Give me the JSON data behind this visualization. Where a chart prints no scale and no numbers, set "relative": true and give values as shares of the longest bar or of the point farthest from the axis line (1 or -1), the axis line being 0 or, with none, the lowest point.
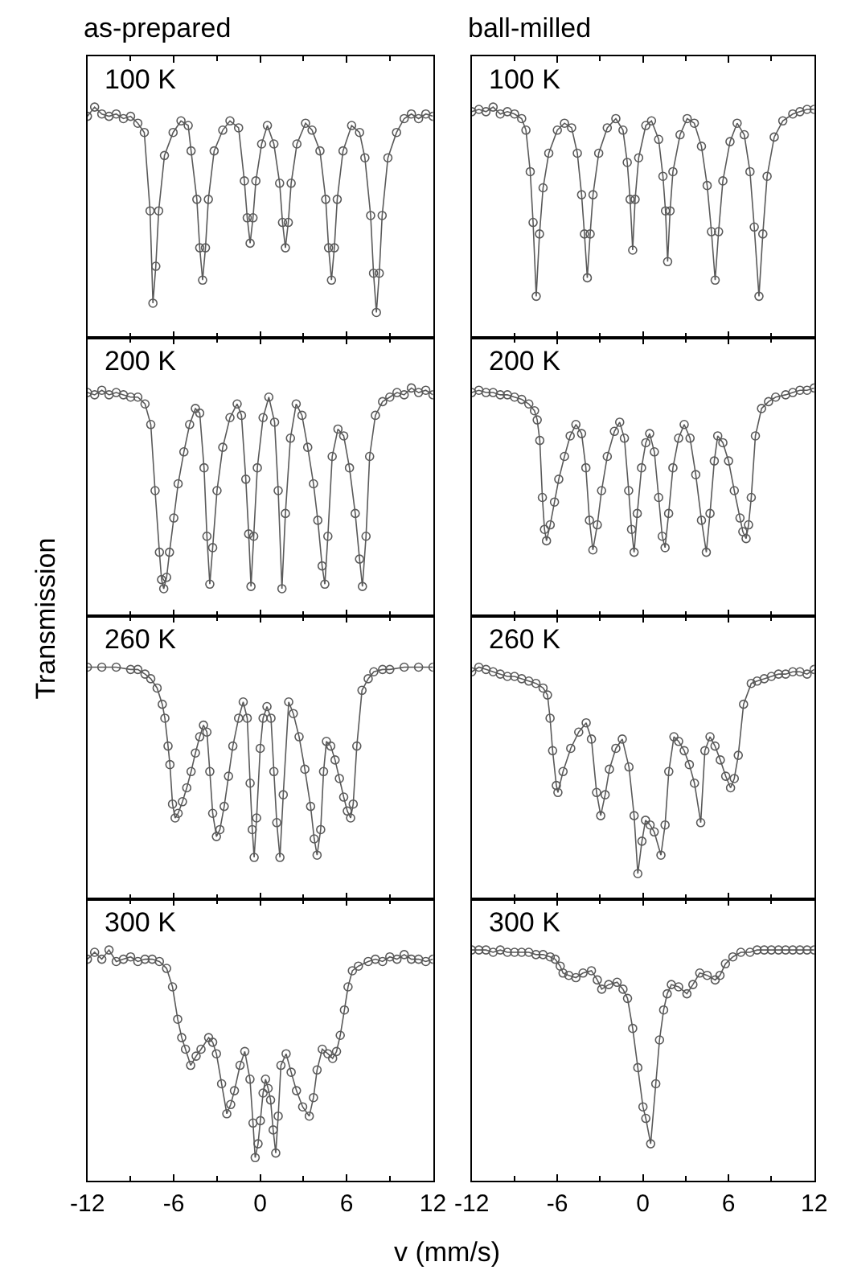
{
  "chart_data": [
    {
      "type": "line",
      "marker": "circle",
      "relative": true,
      "title": "as-prepared",
      "annotations": [
        "100 K"
      ],
      "xlim": [
        -12,
        12
      ],
      "xticks": [
        -12,
        -6,
        0,
        6,
        12
      ],
      "tick_labels": false,
      "x": [
        -12,
        -11.5,
        -11,
        -10.5,
        -10,
        -9.5,
        -9,
        -8.5,
        -8.05,
        -7.65,
        -7.45,
        -7.25,
        -7.05,
        -6.65,
        -6.05,
        -5.5,
        -5.0,
        -4.8,
        -4.4,
        -4.2,
        -4.0,
        -3.8,
        -3.6,
        -3.2,
        -2.6,
        -2.1,
        -1.5,
        -1.1,
        -0.9,
        -0.7,
        -0.5,
        -0.3,
        0.1,
        0.5,
        0.95,
        1.35,
        1.55,
        1.75,
        1.95,
        2.15,
        2.55,
        3.15,
        3.6,
        4.15,
        4.55,
        4.75,
        4.95,
        5.15,
        5.35,
        5.75,
        6.35,
        6.9,
        7.27,
        7.67,
        7.87,
        8.07,
        8.27,
        8.47,
        8.87,
        9.47,
        10,
        10.5,
        11,
        11.5,
        12
      ],
      "series": [
        {
          "color": "#5a5a5a",
          "values": [
            0.96,
            1.0,
            0.97,
            0.96,
            0.97,
            0.95,
            0.96,
            0.93,
            0.89,
            0.55,
            0.15,
            0.31,
            0.55,
            0.79,
            0.89,
            0.94,
            0.92,
            0.81,
            0.6,
            0.39,
            0.25,
            0.39,
            0.6,
            0.81,
            0.9,
            0.94,
            0.91,
            0.68,
            0.52,
            0.41,
            0.52,
            0.68,
            0.84,
            0.92,
            0.84,
            0.67,
            0.5,
            0.39,
            0.5,
            0.67,
            0.84,
            0.93,
            0.9,
            0.81,
            0.6,
            0.39,
            0.25,
            0.39,
            0.6,
            0.81,
            0.92,
            0.89,
            0.78,
            0.53,
            0.28,
            0.11,
            0.28,
            0.53,
            0.78,
            0.89,
            0.95,
            0.97,
            0.95,
            0.97,
            0.96
          ]
        }
      ]
    },
    {
      "type": "line",
      "marker": "circle",
      "relative": true,
      "title": "ball-milled",
      "annotations": [
        "100 K"
      ],
      "xlim": [
        -12,
        12
      ],
      "xticks": [
        -12,
        -6,
        0,
        6,
        12
      ],
      "tick_labels": false,
      "x": [
        -12,
        -11.5,
        -11,
        -10.5,
        -10,
        -9.5,
        -9,
        -8.5,
        -8.2,
        -7.9,
        -7.7,
        -7.48,
        -7.25,
        -7.0,
        -6.6,
        -6.0,
        -5.5,
        -5.0,
        -4.6,
        -4.3,
        -4.1,
        -3.9,
        -3.7,
        -3.5,
        -3.1,
        -2.5,
        -1.9,
        -1.4,
        -1.1,
        -0.9,
        -0.72,
        -0.55,
        -0.3,
        0.2,
        0.6,
        1.1,
        1.4,
        1.58,
        1.73,
        1.9,
        2.1,
        2.6,
        3.1,
        3.6,
        4.1,
        4.5,
        4.8,
        5.06,
        5.3,
        5.6,
        6.1,
        6.6,
        7.1,
        7.5,
        7.8,
        8.13,
        8.4,
        8.7,
        9.2,
        9.8,
        10.5,
        11,
        11.5,
        12
      ],
      "series": [
        {
          "color": "#5a5a5a",
          "values": [
            0.98,
            0.99,
            0.98,
            1.0,
            0.97,
            0.98,
            0.97,
            0.95,
            0.9,
            0.72,
            0.5,
            0.18,
            0.45,
            0.65,
            0.8,
            0.9,
            0.93,
            0.91,
            0.8,
            0.62,
            0.45,
            0.26,
            0.45,
            0.62,
            0.8,
            0.91,
            0.95,
            0.9,
            0.76,
            0.6,
            0.38,
            0.6,
            0.78,
            0.92,
            0.94,
            0.86,
            0.7,
            0.55,
            0.33,
            0.55,
            0.72,
            0.88,
            0.95,
            0.93,
            0.83,
            0.66,
            0.46,
            0.25,
            0.46,
            0.68,
            0.85,
            0.93,
            0.88,
            0.72,
            0.48,
            0.18,
            0.45,
            0.7,
            0.87,
            0.94,
            0.97,
            0.98,
            0.99,
            0.99
          ]
        }
      ]
    },
    {
      "type": "line",
      "marker": "circle",
      "relative": true,
      "ylabel": "Transmission",
      "annotations": [
        "200 K"
      ],
      "xlim": [
        -12,
        12
      ],
      "xticks": [
        -12,
        -6,
        0,
        6,
        12
      ],
      "tick_labels": false,
      "x": [
        -12,
        -11.5,
        -11,
        -10.5,
        -10,
        -9.5,
        -9,
        -8.5,
        -8,
        -7.6,
        -7.3,
        -7.0,
        -6.85,
        -6.7,
        -6.5,
        -6.3,
        -6.0,
        -5.7,
        -5.3,
        -4.9,
        -4.5,
        -4.2,
        -3.9,
        -3.7,
        -3.5,
        -3.3,
        -3.0,
        -2.6,
        -2.1,
        -1.6,
        -1.3,
        -1.0,
        -0.8,
        -0.64,
        -0.45,
        -0.2,
        0.2,
        0.6,
        1.0,
        1.25,
        1.51,
        1.75,
        2.1,
        2.5,
        2.9,
        3.3,
        3.7,
        4.0,
        4.3,
        4.49,
        4.7,
        5.0,
        5.4,
        5.8,
        6.2,
        6.6,
        6.9,
        7.1,
        7.35,
        7.6,
        8.0,
        8.5,
        9,
        9.5,
        10,
        10.5,
        11,
        11.5,
        12
      ],
      "series": [
        {
          "color": "#5a5a5a",
          "values": [
            0.98,
            0.97,
            0.99,
            0.97,
            0.98,
            0.97,
            0.96,
            0.96,
            0.93,
            0.84,
            0.55,
            0.28,
            0.16,
            0.12,
            0.17,
            0.28,
            0.43,
            0.58,
            0.72,
            0.84,
            0.91,
            0.89,
            0.65,
            0.35,
            0.14,
            0.3,
            0.55,
            0.74,
            0.87,
            0.93,
            0.88,
            0.6,
            0.36,
            0.13,
            0.35,
            0.65,
            0.87,
            0.96,
            0.85,
            0.55,
            0.12,
            0.45,
            0.78,
            0.93,
            0.88,
            0.74,
            0.58,
            0.42,
            0.22,
            0.14,
            0.35,
            0.7,
            0.82,
            0.79,
            0.65,
            0.45,
            0.25,
            0.13,
            0.35,
            0.7,
            0.88,
            0.94,
            0.96,
            0.98,
            0.97,
            1.0,
            0.98,
            0.99,
            0.97
          ]
        }
      ]
    },
    {
      "type": "line",
      "marker": "circle",
      "relative": true,
      "annotations": [
        "200 K"
      ],
      "xlim": [
        -12,
        12
      ],
      "xticks": [
        -12,
        -6,
        0,
        6,
        12
      ],
      "tick_labels": false,
      "x": [
        -12,
        -11.5,
        -11,
        -10.5,
        -10,
        -9.5,
        -9,
        -8.5,
        -8,
        -7.6,
        -7.41,
        -7.23,
        -7.05,
        -6.9,
        -6.76,
        -6.5,
        -6.2,
        -5.9,
        -5.5,
        -5.1,
        -4.7,
        -4.3,
        -4.0,
        -3.75,
        -3.51,
        -3.2,
        -2.9,
        -2.5,
        -2.0,
        -1.63,
        -1.3,
        -1.0,
        -0.8,
        -0.62,
        -0.4,
        -0.1,
        0.2,
        0.47,
        0.8,
        1.1,
        1.35,
        1.55,
        1.8,
        2.1,
        2.5,
        2.89,
        3.3,
        3.7,
        4.1,
        4.44,
        4.7,
        5.0,
        5.24,
        5.6,
        6.0,
        6.4,
        6.8,
        7.0,
        7.23,
        7.4,
        7.59,
        7.88,
        8.31,
        8.8,
        9.3,
        10,
        10.5,
        11,
        11.5,
        12
      ],
      "series": [
        {
          "color": "#5a5a5a",
          "values": [
            0.98,
            0.99,
            0.98,
            0.98,
            0.97,
            0.97,
            0.96,
            0.95,
            0.93,
            0.9,
            0.86,
            0.77,
            0.52,
            0.38,
            0.33,
            0.4,
            0.5,
            0.6,
            0.7,
            0.79,
            0.84,
            0.8,
            0.65,
            0.42,
            0.29,
            0.4,
            0.55,
            0.7,
            0.81,
            0.85,
            0.78,
            0.55,
            0.38,
            0.28,
            0.45,
            0.65,
            0.76,
            0.8,
            0.72,
            0.52,
            0.35,
            0.3,
            0.45,
            0.65,
            0.78,
            0.84,
            0.78,
            0.62,
            0.42,
            0.28,
            0.45,
            0.68,
            0.79,
            0.76,
            0.68,
            0.55,
            0.43,
            0.37,
            0.34,
            0.4,
            0.52,
            0.79,
            0.91,
            0.94,
            0.96,
            0.97,
            0.98,
            0.99,
            0.99,
            1.0
          ]
        }
      ]
    },
    {
      "type": "line",
      "marker": "circle",
      "relative": true,
      "annotations": [
        "260 K"
      ],
      "xlim": [
        -12,
        12
      ],
      "xticks": [
        -12,
        -6,
        0,
        6,
        12
      ],
      "tick_labels": false,
      "x": [
        -12,
        -11,
        -10,
        -9,
        -8.5,
        -8,
        -7.6,
        -7.16,
        -6.8,
        -6.62,
        -6.4,
        -6.27,
        -6.09,
        -5.91,
        -5.7,
        -5.4,
        -5.1,
        -4.8,
        -4.5,
        -4.2,
        -3.94,
        -3.7,
        -3.5,
        -3.3,
        -3.04,
        -2.8,
        -2.5,
        -2.2,
        -1.9,
        -1.5,
        -1.18,
        -0.9,
        -0.7,
        -0.55,
        -0.42,
        -0.25,
        0.0,
        0.2,
        0.47,
        0.75,
        0.95,
        1.15,
        1.37,
        1.6,
        1.98,
        2.3,
        2.7,
        3.1,
        3.5,
        3.75,
        3.95,
        4.2,
        4.4,
        4.6,
        4.9,
        5.2,
        5.5,
        5.8,
        6.05,
        6.28,
        6.46,
        6.71,
        7.07,
        7.5,
        7.89,
        8.5,
        9,
        10,
        11,
        12
      ],
      "series": [
        {
          "color": "#5a5a5a",
          "values": [
            1.0,
            1.0,
            1.0,
            0.99,
            0.99,
            0.97,
            0.95,
            0.91,
            0.84,
            0.78,
            0.66,
            0.58,
            0.41,
            0.35,
            0.37,
            0.42,
            0.48,
            0.55,
            0.63,
            0.7,
            0.75,
            0.72,
            0.55,
            0.37,
            0.27,
            0.3,
            0.4,
            0.53,
            0.66,
            0.78,
            0.85,
            0.78,
            0.5,
            0.3,
            0.18,
            0.35,
            0.65,
            0.78,
            0.83,
            0.78,
            0.55,
            0.33,
            0.18,
            0.45,
            0.85,
            0.8,
            0.7,
            0.56,
            0.4,
            0.26,
            0.19,
            0.3,
            0.55,
            0.68,
            0.66,
            0.6,
            0.52,
            0.44,
            0.38,
            0.35,
            0.41,
            0.66,
            0.9,
            0.95,
            0.98,
            0.99,
            0.99,
            1.0,
            1.0,
            1.0
          ]
        }
      ]
    },
    {
      "type": "line",
      "marker": "circle",
      "relative": true,
      "annotations": [
        "260 K"
      ],
      "xlim": [
        -12,
        12
      ],
      "xticks": [
        -12,
        -6,
        0,
        6,
        12
      ],
      "tick_labels": false,
      "x": [
        -12,
        -11.5,
        -11,
        -10.5,
        -10,
        -9.5,
        -9,
        -8.5,
        -8,
        -7.5,
        -7.0,
        -6.69,
        -6.51,
        -6.33,
        -6.07,
        -5.96,
        -5.6,
        -5.06,
        -4.5,
        -3.98,
        -3.61,
        -3.25,
        -2.96,
        -2.65,
        -2.35,
        -1.9,
        -1.45,
        -0.98,
        -0.62,
        -0.36,
        -0.07,
        0.18,
        0.5,
        0.79,
        1.26,
        1.55,
        1.81,
        2.17,
        2.5,
        2.89,
        3.25,
        3.61,
        4.05,
        4.34,
        4.7,
        5.05,
        5.42,
        5.8,
        6.14,
        6.4,
        6.68,
        7.05,
        7.59,
        8.0,
        8.5,
        9,
        9.5,
        10,
        10.5,
        11,
        11.5,
        12
      ],
      "series": [
        {
          "color": "#5a5a5a",
          "values": [
            0.98,
            1.0,
            0.99,
            0.98,
            0.97,
            0.96,
            0.96,
            0.95,
            0.94,
            0.93,
            0.91,
            0.88,
            0.78,
            0.64,
            0.49,
            0.46,
            0.55,
            0.65,
            0.72,
            0.76,
            0.69,
            0.46,
            0.36,
            0.45,
            0.56,
            0.65,
            0.69,
            0.57,
            0.36,
            0.11,
            0.25,
            0.34,
            0.32,
            0.29,
            0.19,
            0.32,
            0.55,
            0.7,
            0.68,
            0.64,
            0.58,
            0.5,
            0.33,
            0.64,
            0.7,
            0.66,
            0.6,
            0.53,
            0.48,
            0.52,
            0.62,
            0.84,
            0.93,
            0.94,
            0.95,
            0.96,
            0.97,
            0.97,
            0.98,
            0.98,
            0.97,
            0.99
          ]
        }
      ]
    },
    {
      "type": "line",
      "marker": "circle",
      "relative": true,
      "xlabel": "v (mm/s)",
      "annotations": [
        "300 K"
      ],
      "xlim": [
        -12,
        12
      ],
      "xticks": [
        -12,
        -6,
        0,
        6,
        12
      ],
      "tick_labels": "x",
      "x": [
        -12,
        -11.5,
        -11,
        -10.5,
        -10,
        -9.5,
        -9,
        -8.5,
        -8,
        -7.5,
        -7,
        -6.5,
        -6.09,
        -5.73,
        -5.45,
        -5.19,
        -4.83,
        -4.45,
        -4.11,
        -3.58,
        -3.3,
        -3.04,
        -2.68,
        -2.32,
        -2.05,
        -1.79,
        -1.4,
        -1.07,
        -0.71,
        -0.5,
        -0.35,
        -0.15,
        0.01,
        0.2,
        0.37,
        0.55,
        0.72,
        0.9,
        1.08,
        1.25,
        1.44,
        1.8,
        2.15,
        2.52,
        2.95,
        3.41,
        3.7,
        3.95,
        4.31,
        4.7,
        5.03,
        5.3,
        5.56,
        5.85,
        6.1,
        6.4,
        6.82,
        7.5,
        8,
        8.5,
        9,
        9.5,
        10,
        10.5,
        11,
        11.5,
        12
      ],
      "series": [
        {
          "color": "#5a5a5a",
          "values": [
            0.96,
            0.99,
            0.96,
            1.0,
            0.95,
            0.96,
            0.97,
            0.95,
            0.96,
            0.96,
            0.95,
            0.92,
            0.84,
            0.7,
            0.62,
            0.57,
            0.5,
            0.54,
            0.57,
            0.62,
            0.6,
            0.55,
            0.42,
            0.29,
            0.33,
            0.39,
            0.5,
            0.56,
            0.44,
            0.25,
            0.1,
            0.16,
            0.26,
            0.38,
            0.44,
            0.4,
            0.35,
            0.22,
            0.12,
            0.28,
            0.5,
            0.55,
            0.47,
            0.39,
            0.32,
            0.28,
            0.36,
            0.48,
            0.57,
            0.55,
            0.53,
            0.56,
            0.63,
            0.74,
            0.84,
            0.91,
            0.93,
            0.95,
            0.96,
            0.95,
            0.97,
            0.96,
            0.98,
            0.96,
            0.96,
            0.95,
            0.96
          ]
        }
      ]
    },
    {
      "type": "line",
      "marker": "circle",
      "relative": true,
      "annotations": [
        "300 K"
      ],
      "xlim": [
        -12,
        12
      ],
      "xticks": [
        -12,
        -6,
        0,
        6,
        12
      ],
      "tick_labels": "x",
      "x": [
        -12,
        -11.5,
        -11,
        -10.5,
        -10,
        -9.5,
        -9,
        -8.5,
        -8,
        -7.5,
        -7,
        -6.5,
        -6.15,
        -5.8,
        -5.6,
        -5.2,
        -4.7,
        -4.2,
        -3.61,
        -3.2,
        -2.89,
        -2.4,
        -1.81,
        -1.4,
        -1.08,
        -0.72,
        -0.36,
        0.0,
        0.2,
        0.54,
        0.9,
        1.16,
        1.45,
        1.7,
        1.99,
        2.5,
        3.08,
        3.5,
        3.98,
        4.5,
        5.06,
        5.4,
        5.78,
        6.3,
        6.86,
        7.5,
        8,
        8.5,
        9,
        9.5,
        10,
        10.5,
        11,
        11.5,
        12
      ],
      "series": [
        {
          "color": "#5a5a5a",
          "values": [
            1.0,
            1.0,
            1.0,
            0.99,
            1.0,
            0.99,
            0.99,
            0.99,
            0.99,
            0.98,
            0.98,
            0.97,
            0.96,
            0.93,
            0.9,
            0.89,
            0.88,
            0.9,
            0.91,
            0.87,
            0.83,
            0.85,
            0.86,
            0.83,
            0.79,
            0.66,
            0.49,
            0.32,
            0.27,
            0.16,
            0.42,
            0.61,
            0.74,
            0.81,
            0.85,
            0.84,
            0.81,
            0.85,
            0.9,
            0.89,
            0.87,
            0.89,
            0.94,
            0.97,
            0.99,
            0.99,
            1.0,
            1.0,
            1.0,
            1.0,
            1.0,
            1.0,
            1.0,
            1.0,
            1.0
          ]
        }
      ]
    }
  ]
}
